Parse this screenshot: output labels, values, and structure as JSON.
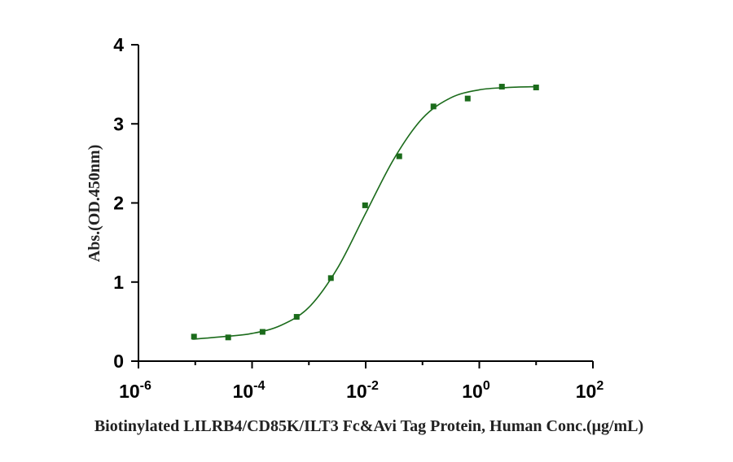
{
  "chart_data": {
    "type": "scatter",
    "xlabel": "Biotinylated LILRB4/CD85K/ILT3 Fc&Avi Tag Protein, Human Conc.(μg/mL)",
    "ylabel": "Abs.(OD.450nm)",
    "xlog": true,
    "color": "#1b6b1b",
    "x": [
      9.5e-06,
      3.8e-05,
      0.000153,
      0.00061,
      0.00244,
      0.00977,
      0.039,
      0.156,
      0.625,
      2.5,
      10
    ],
    "values": [
      0.31,
      0.3,
      0.37,
      0.56,
      1.05,
      1.97,
      2.59,
      3.22,
      3.32,
      3.47,
      3.46
    ],
    "fit": {
      "x": [
        9.5e-06,
        1e-05,
        3.16e-05,
        0.0001,
        0.000316,
        0.001,
        0.00316,
        0.01,
        0.0316,
        0.1,
        0.316,
        1,
        3.16,
        10
      ],
      "values": [
        0.28,
        0.28,
        0.31,
        0.35,
        0.45,
        0.68,
        1.17,
        1.87,
        2.56,
        3.07,
        3.33,
        3.43,
        3.46,
        3.47
      ]
    },
    "xlim": [
      1e-06,
      100
    ],
    "ylim": [
      0,
      4
    ],
    "xticks": [
      {
        "value": 1e-06,
        "label": "10",
        "exponent": "-6"
      },
      {
        "value": 0.0001,
        "label": "10",
        "exponent": "-4"
      },
      {
        "value": 0.01,
        "label": "10",
        "exponent": "-2"
      },
      {
        "value": 1,
        "label": "10",
        "exponent": "0"
      },
      {
        "value": 100,
        "label": "10",
        "exponent": "2"
      }
    ],
    "xminorticks": [
      1e-05,
      0.001,
      0.1,
      10
    ],
    "yticks": [
      0,
      1,
      2,
      3,
      4
    ]
  }
}
